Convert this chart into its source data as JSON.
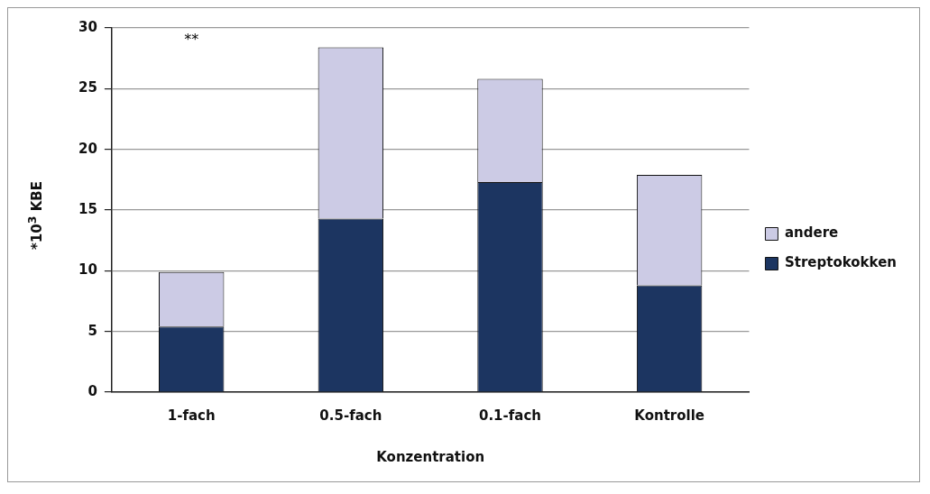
{
  "chart_data": {
    "type": "bar",
    "stacked": true,
    "xlabel": "Konzentration",
    "ylabel": "*10$^{3}$ KBE",
    "categories": [
      "1-fach",
      "0.5-fach",
      "0.1-fach",
      "Kontrolle"
    ],
    "series": [
      {
        "name": "Streptokokken",
        "color": "#1c3561",
        "values": [
          5.4,
          14.3,
          17.3,
          8.8
        ]
      },
      {
        "name": "andere",
        "color": "#cccbe5",
        "values": [
          4.5,
          14.1,
          8.5,
          9.1
        ]
      }
    ],
    "ylim": [
      0,
      30
    ],
    "yticks": [
      0,
      5,
      10,
      15,
      20,
      25,
      30
    ],
    "grid": "y",
    "legend": "right",
    "annotations": [
      "**"
    ]
  }
}
